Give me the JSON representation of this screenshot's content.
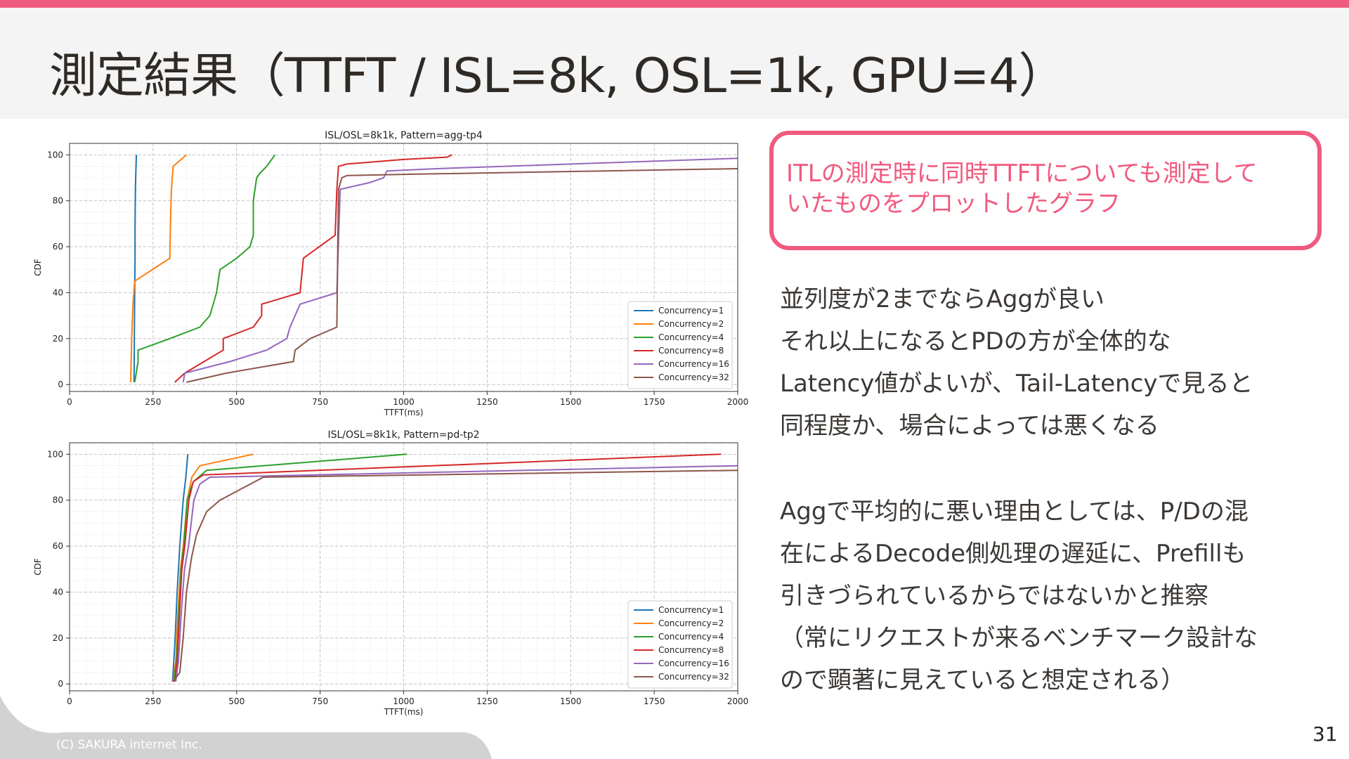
{
  "slide": {
    "title": "測定結果（TTFT / ISL=8k, OSL=1k, GPU=4）",
    "page_number": "31",
    "copyright": "(C) SAKURA internet Inc.",
    "accent_color": "#f05a7e"
  },
  "callout": {
    "lines": [
      "ITLの測定時に同時TTFTについても測定して",
      "いたものをプロットしたグラフ"
    ]
  },
  "body": {
    "paragraph1": [
      "並列度が2までならAggが良い",
      "それ以上になるとPDの方が全体的な",
      "Latency値がよいが、Tail-Latencyで見ると",
      "同程度か、場合によっては悪くなる"
    ],
    "paragraph2": [
      "Aggで平均的に悪い理由としては、P/Dの混",
      "在によるDecode側処理の遅延に、Prefillも",
      "引きづられているからではないかと推察",
      "（常にリクエストが来るベンチマーク設計な",
      "ので顕著に見えていると想定される）"
    ]
  },
  "chart_data": [
    {
      "type": "line",
      "title": "ISL/OSL=8k1k, Pattern=agg-tp4",
      "xlabel": "TTFT(ms)",
      "ylabel": "CDF",
      "xlim": [
        0,
        2000
      ],
      "ylim": [
        -3,
        105
      ],
      "xticks": [
        0,
        250,
        500,
        750,
        1000,
        1250,
        1500,
        1750,
        2000
      ],
      "yticks": [
        0,
        20,
        40,
        60,
        80,
        100
      ],
      "grid": true,
      "legend": "lower-right",
      "series": [
        {
          "name": "Concurrency=1",
          "color": "#1f77b4",
          "x": [
            193,
            194,
            195,
            196,
            196,
            197,
            198,
            199,
            200
          ],
          "y": [
            1,
            20,
            40,
            55,
            70,
            85,
            90,
            95,
            100
          ]
        },
        {
          "name": "Concurrency=2",
          "color": "#ff7f0e",
          "x": [
            183,
            186,
            190,
            195,
            300,
            302,
            305,
            310,
            350
          ],
          "y": [
            1,
            20,
            35,
            45,
            55,
            70,
            85,
            95,
            100
          ]
        },
        {
          "name": "Concurrency=4",
          "color": "#2ca02c",
          "x": [
            195,
            205,
            205,
            300,
            390,
            420,
            440,
            450,
            500,
            540,
            550,
            550,
            560,
            570,
            590,
            615
          ],
          "y": [
            1,
            10,
            15,
            20,
            25,
            30,
            40,
            50,
            55,
            60,
            65,
            80,
            90,
            92,
            95,
            100
          ]
        },
        {
          "name": "Concurrency=8",
          "color": "#d62728",
          "x": [
            315,
            345,
            460,
            460,
            550,
            575,
            575,
            690,
            700,
            795,
            800,
            805,
            830,
            1000,
            1130,
            1145
          ],
          "y": [
            1,
            5,
            15,
            20,
            25,
            30,
            35,
            40,
            55,
            65,
            85,
            95,
            96,
            98,
            99,
            100
          ]
        },
        {
          "name": "Concurrency=16",
          "color": "#9467bd",
          "x": [
            340,
            345,
            480,
            590,
            650,
            660,
            690,
            800,
            810,
            900,
            940,
            950,
            1100,
            2000
          ],
          "y": [
            1,
            5,
            10,
            15,
            20,
            25,
            35,
            40,
            85,
            88,
            90,
            93,
            94,
            98.5
          ]
        },
        {
          "name": "Concurrency=32",
          "color": "#8c564b",
          "x": [
            350,
            470,
            670,
            675,
            720,
            800,
            805,
            815,
            830,
            1000,
            2000
          ],
          "y": [
            1,
            5,
            10,
            15,
            20,
            25,
            85,
            90,
            91,
            91.5,
            94
          ]
        }
      ]
    },
    {
      "type": "line",
      "title": "ISL/OSL=8k1k, Pattern=pd-tp2",
      "xlabel": "TTFT(ms)",
      "ylabel": "CDF",
      "xlim": [
        0,
        2000
      ],
      "ylim": [
        -3,
        105
      ],
      "xticks": [
        0,
        250,
        500,
        750,
        1000,
        1250,
        1500,
        1750,
        2000
      ],
      "yticks": [
        0,
        20,
        40,
        60,
        80,
        100
      ],
      "grid": true,
      "legend": "lower-right",
      "series": [
        {
          "name": "Concurrency=1",
          "color": "#1f77b4",
          "x": [
            308,
            312,
            316,
            322,
            330,
            340,
            348,
            354
          ],
          "y": [
            1,
            10,
            20,
            40,
            60,
            80,
            90,
            100
          ]
        },
        {
          "name": "Concurrency=2",
          "color": "#ff7f0e",
          "x": [
            310,
            318,
            324,
            332,
            340,
            352,
            366,
            390,
            550
          ],
          "y": [
            1,
            10,
            30,
            50,
            60,
            80,
            90,
            95,
            100
          ]
        },
        {
          "name": "Concurrency=4",
          "color": "#2ca02c",
          "x": [
            312,
            320,
            327,
            334,
            342,
            352,
            370,
            410,
            1010
          ],
          "y": [
            1,
            10,
            30,
            50,
            60,
            80,
            88,
            93,
            100
          ]
        },
        {
          "name": "Concurrency=8",
          "color": "#d62728",
          "x": [
            315,
            322,
            329,
            336,
            345,
            357,
            370,
            400,
            1950
          ],
          "y": [
            1,
            10,
            30,
            50,
            60,
            80,
            88,
            91,
            100
          ]
        },
        {
          "name": "Concurrency=16",
          "color": "#9467bd",
          "x": [
            318,
            326,
            334,
            344,
            356,
            372,
            390,
            420,
            2000
          ],
          "y": [
            1,
            10,
            30,
            50,
            60,
            80,
            87,
            90,
            95
          ]
        },
        {
          "name": "Concurrency=32",
          "color": "#8c564b",
          "x": [
            310,
            330,
            340,
            350,
            365,
            380,
            410,
            450,
            580,
            2000
          ],
          "y": [
            1,
            5,
            20,
            40,
            55,
            65,
            75,
            80,
            90,
            93
          ]
        }
      ]
    }
  ]
}
